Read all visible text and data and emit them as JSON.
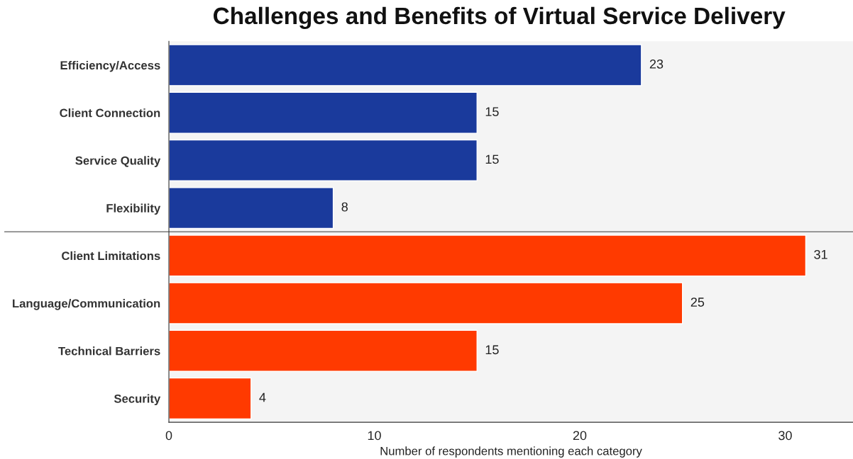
{
  "chart_data": {
    "type": "bar",
    "orientation": "horizontal",
    "title": "Challenges and Benefits of Virtual Service Delivery",
    "xlabel": "Number of respondents mentioning each category",
    "categories": [
      "Efficiency/Access",
      "Client Connection",
      "Service Quality",
      "Flexibility",
      "Client Limitations",
      "Language/Communication",
      "Technical Barriers",
      "Security"
    ],
    "series": [
      {
        "color": "#1a3a9c",
        "values": [
          23,
          15,
          15,
          8,
          null,
          null,
          null,
          null
        ]
      },
      {
        "color": "#ff3a00",
        "values": [
          null,
          null,
          null,
          null,
          31,
          25,
          15,
          4
        ]
      }
    ],
    "xlim": [
      0,
      33.3
    ],
    "xticks": [
      0,
      10,
      20,
      30
    ],
    "data_labels": true,
    "grid": false
  }
}
